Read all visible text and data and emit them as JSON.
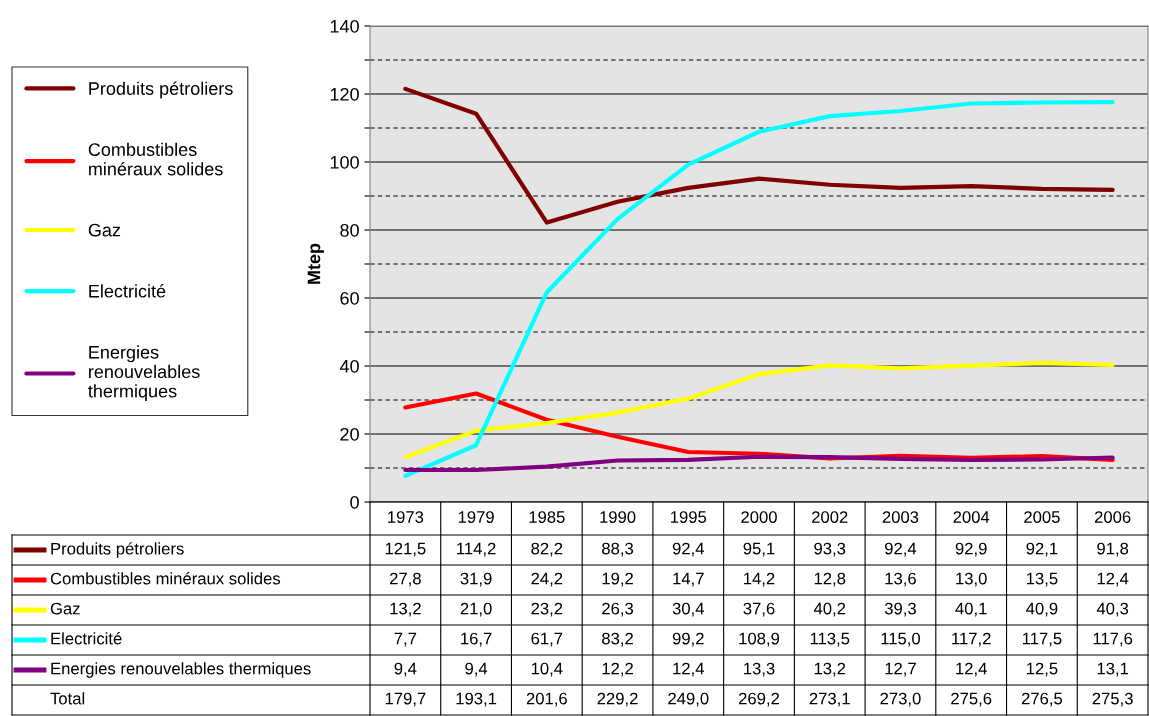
{
  "chart_data": {
    "type": "line",
    "ylabel": "Mtep",
    "categories": [
      "1973",
      "1979",
      "1985",
      "1990",
      "1995",
      "2000",
      "2002",
      "2003",
      "2004",
      "2005",
      "2006"
    ],
    "series": [
      {
        "name": "Produits pétroliers",
        "color": "#800000",
        "values": [
          121.5,
          114.2,
          82.2,
          88.3,
          92.4,
          95.1,
          93.3,
          92.4,
          92.9,
          92.1,
          91.8
        ],
        "value_labels": [
          "121,5",
          "114,2",
          "82,2",
          "88,3",
          "92,4",
          "95,1",
          "93,3",
          "92,4",
          "92,9",
          "92,1",
          "91,8"
        ]
      },
      {
        "name": "Combustibles minéraux solides",
        "color": "#ff0000",
        "values": [
          27.8,
          31.9,
          24.2,
          19.2,
          14.7,
          14.2,
          12.8,
          13.6,
          13.0,
          13.5,
          12.4
        ],
        "value_labels": [
          "27,8",
          "31,9",
          "24,2",
          "19,2",
          "14,7",
          "14,2",
          "12,8",
          "13,6",
          "13,0",
          "13,5",
          "12,4"
        ]
      },
      {
        "name": "Gaz",
        "color": "#ffff00",
        "values": [
          13.2,
          21.0,
          23.2,
          26.3,
          30.4,
          37.6,
          40.2,
          39.3,
          40.1,
          40.9,
          40.3
        ],
        "value_labels": [
          "13,2",
          "21,0",
          "23,2",
          "26,3",
          "30,4",
          "37,6",
          "40,2",
          "39,3",
          "40,1",
          "40,9",
          "40,3"
        ]
      },
      {
        "name": "Electricité",
        "color": "#00ffff",
        "values": [
          7.7,
          16.7,
          61.7,
          83.2,
          99.2,
          108.9,
          113.5,
          115.0,
          117.2,
          117.5,
          117.6
        ],
        "value_labels": [
          "7,7",
          "16,7",
          "61,7",
          "83,2",
          "99,2",
          "108,9",
          "113,5",
          "115,0",
          "117,2",
          "117,5",
          "117,6"
        ]
      },
      {
        "name": "Energies renouvelables thermiques",
        "color": "#800080",
        "values": [
          9.4,
          9.4,
          10.4,
          12.2,
          12.4,
          13.3,
          13.2,
          12.7,
          12.4,
          12.5,
          13.1
        ],
        "value_labels": [
          "9,4",
          "9,4",
          "10,4",
          "12,2",
          "12,4",
          "13,3",
          "13,2",
          "12,7",
          "12,4",
          "12,5",
          "13,1"
        ]
      }
    ],
    "ylim": [
      0,
      140
    ],
    "yticks": [
      0,
      {
        "value": 10,
        "label": null
      },
      20,
      {
        "value": 30,
        "label": null
      },
      40,
      {
        "value": 50,
        "label": null
      },
      60,
      {
        "value": 70,
        "label": null
      },
      80,
      {
        "value": 90,
        "label": null
      },
      100,
      {
        "value": 110,
        "label": null
      },
      120,
      {
        "value": 130,
        "label": null
      },
      140
    ],
    "grid": "y",
    "legend": "left",
    "tick_labels": "y",
    "marker": "none",
    "line_style": "solid",
    "annotations": [
      "Total"
    ],
    "totals": [
      "179,7",
      "193,1",
      "201,6",
      "229,2",
      "249,0",
      "269,2",
      "273,1",
      "273,0",
      "275,6",
      "276,5",
      "275,3"
    ]
  }
}
